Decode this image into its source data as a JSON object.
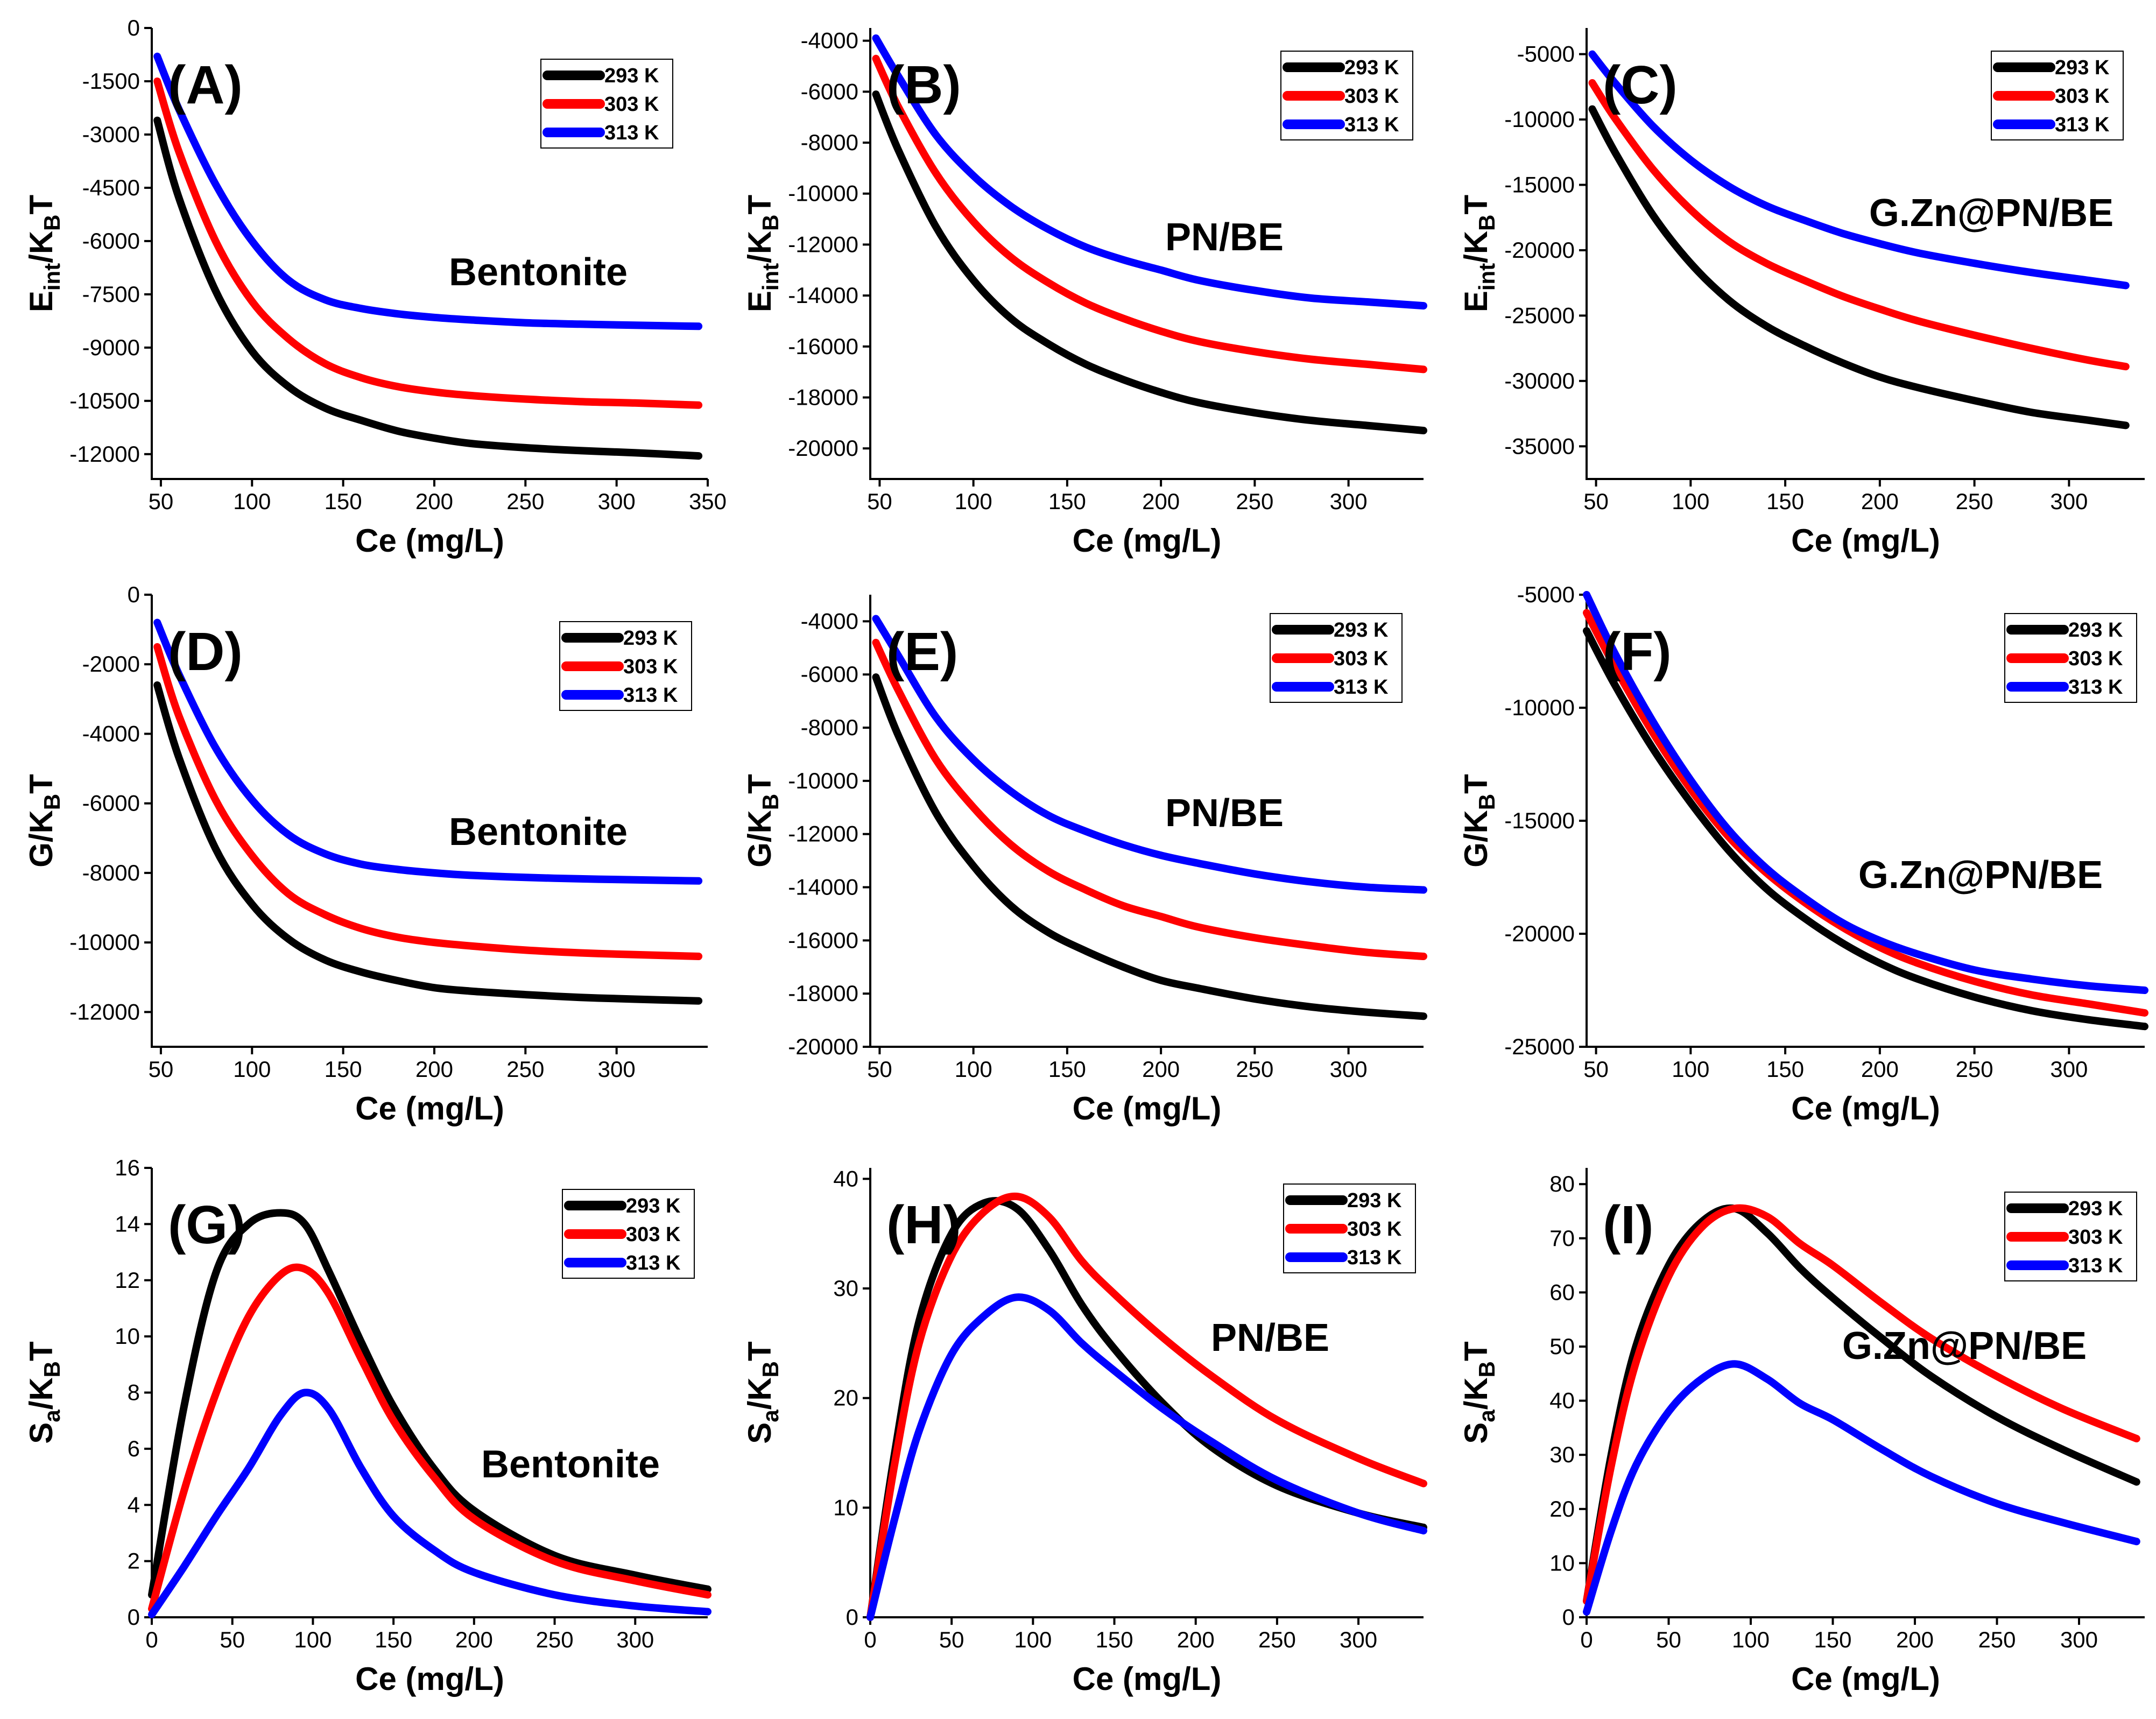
{
  "figure_title": "",
  "colors": {
    "293 K": "#000000",
    "303 K": "#ff0000",
    "313 K": "#0000ff"
  },
  "chart_data": [
    {
      "panel": "(A)",
      "type": "line",
      "annotation": "Bentonite",
      "xlabel": "Ce (mg/L)",
      "ylabel_main": "E",
      "ylabel_sub1": "int",
      "ylabel_mid": "/K",
      "ylabel_sub2": "B",
      "ylabel_tail": "T",
      "xlim": [
        45,
        350
      ],
      "ylim": [
        -12700,
        0
      ],
      "xticks": [
        50,
        100,
        150,
        200,
        250,
        300,
        350
      ],
      "yticks": [
        0,
        -1500,
        -3000,
        -4500,
        -6000,
        -7500,
        -9000,
        -10500,
        -12000
      ],
      "x": [
        48,
        60,
        80,
        100,
        120,
        140,
        160,
        180,
        200,
        220,
        250,
        280,
        310,
        345
      ],
      "series": [
        {
          "name": "293 K",
          "color": "#000000",
          "values": [
            -2600,
            -4800,
            -7400,
            -9100,
            -10100,
            -10700,
            -11050,
            -11350,
            -11550,
            -11700,
            -11820,
            -11900,
            -11960,
            -12050
          ]
        },
        {
          "name": "303 K",
          "color": "#ff0000",
          "values": [
            -1500,
            -3500,
            -6000,
            -7700,
            -8750,
            -9450,
            -9850,
            -10100,
            -10250,
            -10350,
            -10450,
            -10520,
            -10560,
            -10620
          ]
        },
        {
          "name": "313 K",
          "color": "#0000ff",
          "values": [
            -800,
            -2300,
            -4400,
            -6000,
            -7100,
            -7650,
            -7900,
            -8050,
            -8150,
            -8220,
            -8300,
            -8340,
            -8370,
            -8400
          ]
        }
      ]
    },
    {
      "panel": "(B)",
      "type": "line",
      "annotation": "PN/BE",
      "xlabel": "Ce (mg/L)",
      "ylabel_main": "E",
      "ylabel_sub1": "int",
      "ylabel_mid": "/K",
      "ylabel_sub2": "B",
      "ylabel_tail": "T",
      "xlim": [
        45,
        340
      ],
      "ylim": [
        -21200,
        -3500
      ],
      "xticks": [
        50,
        100,
        150,
        200,
        250,
        300
      ],
      "yticks": [
        -4000,
        -6000,
        -8000,
        -10000,
        -12000,
        -14000,
        -16000,
        -18000,
        -20000
      ],
      "x": [
        48,
        60,
        80,
        100,
        120,
        140,
        160,
        180,
        200,
        220,
        250,
        280,
        310,
        340
      ],
      "series": [
        {
          "name": "293 K",
          "color": "#000000",
          "values": [
            -6100,
            -8300,
            -11300,
            -13400,
            -14900,
            -15900,
            -16700,
            -17300,
            -17800,
            -18200,
            -18600,
            -18900,
            -19100,
            -19300
          ]
        },
        {
          "name": "303 K",
          "color": "#ff0000",
          "values": [
            -4700,
            -6600,
            -9200,
            -11100,
            -12500,
            -13500,
            -14300,
            -14900,
            -15400,
            -15800,
            -16200,
            -16500,
            -16700,
            -16900
          ]
        },
        {
          "name": "313 K",
          "color": "#0000ff",
          "values": [
            -3900,
            -5400,
            -7700,
            -9300,
            -10500,
            -11400,
            -12100,
            -12600,
            -13000,
            -13400,
            -13800,
            -14100,
            -14250,
            -14400
          ]
        }
      ]
    },
    {
      "panel": "(C)",
      "type": "line",
      "annotation": "G.Zn@PN/BE",
      "xlabel": "Ce (mg/L)",
      "ylabel_main": "E",
      "ylabel_sub1": "int",
      "ylabel_mid": "/K",
      "ylabel_sub2": "B",
      "ylabel_tail": "T",
      "xlim": [
        45,
        340
      ],
      "ylim": [
        -37500,
        -3000
      ],
      "xticks": [
        50,
        100,
        150,
        200,
        250,
        300
      ],
      "yticks": [
        -5000,
        -10000,
        -15000,
        -20000,
        -25000,
        -30000,
        -35000
      ],
      "x": [
        48,
        60,
        80,
        100,
        120,
        140,
        160,
        180,
        200,
        220,
        250,
        280,
        310,
        330
      ],
      "series": [
        {
          "name": "293 K",
          "color": "#000000",
          "values": [
            -9200,
            -12500,
            -17300,
            -21000,
            -23800,
            -25800,
            -27300,
            -28600,
            -29700,
            -30500,
            -31500,
            -32400,
            -33000,
            -33400
          ]
        },
        {
          "name": "303 K",
          "color": "#ff0000",
          "values": [
            -7200,
            -9900,
            -13800,
            -16900,
            -19300,
            -21000,
            -22300,
            -23500,
            -24500,
            -25400,
            -26500,
            -27500,
            -28400,
            -28900
          ]
        },
        {
          "name": "313 K",
          "color": "#0000ff",
          "values": [
            -5000,
            -7200,
            -10500,
            -13100,
            -15100,
            -16600,
            -17700,
            -18700,
            -19500,
            -20200,
            -21000,
            -21700,
            -22300,
            -22700
          ]
        }
      ]
    },
    {
      "panel": "(D)",
      "type": "line",
      "annotation": "Bentonite",
      "xlabel": "Ce (mg/L)",
      "ylabel_main": "G/K",
      "ylabel_sub1": "",
      "ylabel_mid": "",
      "ylabel_sub2": "B",
      "ylabel_tail": "T",
      "xlim": [
        45,
        350
      ],
      "ylim": [
        -13000,
        0
      ],
      "xticks": [
        50,
        100,
        150,
        200,
        250,
        300
      ],
      "yticks": [
        0,
        -2000,
        -4000,
        -6000,
        -8000,
        -10000,
        -12000
      ],
      "x": [
        48,
        60,
        80,
        100,
        120,
        140,
        160,
        180,
        200,
        220,
        250,
        280,
        310,
        345
      ],
      "series": [
        {
          "name": "293 K",
          "color": "#000000",
          "values": [
            -2600,
            -4700,
            -7300,
            -8900,
            -9900,
            -10500,
            -10850,
            -11100,
            -11300,
            -11400,
            -11500,
            -11580,
            -11630,
            -11680
          ]
        },
        {
          "name": "303 K",
          "color": "#ff0000",
          "values": [
            -1500,
            -3500,
            -5900,
            -7500,
            -8600,
            -9200,
            -9600,
            -9850,
            -10000,
            -10100,
            -10220,
            -10300,
            -10350,
            -10400
          ]
        },
        {
          "name": "313 K",
          "color": "#0000ff",
          "values": [
            -800,
            -2300,
            -4400,
            -5900,
            -6900,
            -7450,
            -7750,
            -7900,
            -8000,
            -8070,
            -8130,
            -8170,
            -8200,
            -8230
          ]
        }
      ]
    },
    {
      "panel": "(E)",
      "type": "line",
      "annotation": "PN/BE",
      "xlabel": "Ce (mg/L)",
      "ylabel_main": "G/K",
      "ylabel_sub1": "",
      "ylabel_mid": "",
      "ylabel_sub2": "B",
      "ylabel_tail": "T",
      "xlim": [
        45,
        340
      ],
      "ylim": [
        -20000,
        -3000
      ],
      "xticks": [
        50,
        100,
        150,
        200,
        250,
        300
      ],
      "yticks": [
        -4000,
        -6000,
        -8000,
        -10000,
        -12000,
        -14000,
        -16000,
        -18000,
        -20000
      ],
      "x": [
        48,
        60,
        80,
        100,
        120,
        140,
        160,
        180,
        200,
        220,
        250,
        280,
        310,
        340
      ],
      "series": [
        {
          "name": "293 K",
          "color": "#000000",
          "values": [
            -6100,
            -8300,
            -11200,
            -13200,
            -14700,
            -15700,
            -16400,
            -17000,
            -17500,
            -17800,
            -18200,
            -18500,
            -18700,
            -18850
          ]
        },
        {
          "name": "303 K",
          "color": "#ff0000",
          "values": [
            -4800,
            -6600,
            -9200,
            -11000,
            -12400,
            -13400,
            -14100,
            -14700,
            -15100,
            -15500,
            -15900,
            -16200,
            -16450,
            -16600
          ]
        },
        {
          "name": "313 K",
          "color": "#0000ff",
          "values": [
            -3900,
            -5300,
            -7600,
            -9200,
            -10400,
            -11300,
            -11900,
            -12400,
            -12800,
            -13100,
            -13500,
            -13800,
            -14000,
            -14100
          ]
        }
      ]
    },
    {
      "panel": "(F)",
      "type": "line",
      "annotation": "G.Zn@PN/BE",
      "xlabel": "Ce (mg/L)",
      "ylabel_main": "G/K",
      "ylabel_sub1": "",
      "ylabel_mid": "",
      "ylabel_sub2": "B",
      "ylabel_tail": "T",
      "xlim": [
        45,
        340
      ],
      "ylim": [
        -25000,
        -5000
      ],
      "xticks": [
        50,
        100,
        150,
        200,
        250,
        300
      ],
      "yticks": [
        -5000,
        -10000,
        -15000,
        -20000,
        -25000
      ],
      "x": [
        45,
        60,
        80,
        100,
        120,
        140,
        160,
        180,
        200,
        220,
        250,
        280,
        310,
        340
      ],
      "series": [
        {
          "name": "293 K",
          "color": "#000000",
          "values": [
            -6600,
            -9000,
            -11800,
            -14200,
            -16300,
            -18000,
            -19300,
            -20400,
            -21300,
            -22000,
            -22800,
            -23400,
            -23800,
            -24100
          ]
        },
        {
          "name": "303 K",
          "color": "#ff0000",
          "values": [
            -5800,
            -8200,
            -11100,
            -13600,
            -15700,
            -17300,
            -18600,
            -19700,
            -20600,
            -21300,
            -22100,
            -22700,
            -23100,
            -23500
          ]
        },
        {
          "name": "313 K",
          "color": "#0000ff",
          "values": [
            -5000,
            -7600,
            -10600,
            -13200,
            -15400,
            -17100,
            -18400,
            -19500,
            -20300,
            -20900,
            -21600,
            -22000,
            -22300,
            -22500
          ]
        }
      ]
    },
    {
      "panel": "(G)",
      "type": "line",
      "annotation": "Bentonite",
      "xlabel": "Ce (mg/L)",
      "ylabel_main": "S",
      "ylabel_sub1": "a",
      "ylabel_mid": "/K",
      "ylabel_sub2": "B",
      "ylabel_tail": "T",
      "xlim": [
        0,
        345
      ],
      "ylim": [
        0,
        16
      ],
      "xticks": [
        0,
        50,
        100,
        150,
        200,
        250,
        300
      ],
      "yticks": [
        0,
        2,
        4,
        6,
        8,
        10,
        12,
        14,
        16
      ],
      "x": [
        0,
        20,
        40,
        60,
        80,
        95,
        110,
        130,
        150,
        175,
        200,
        250,
        300,
        345
      ],
      "series": [
        {
          "name": "293 K",
          "color": "#000000",
          "values": [
            0.8,
            7.5,
            12.3,
            14.0,
            14.4,
            14.0,
            12.3,
            9.8,
            7.5,
            5.3,
            3.8,
            2.2,
            1.5,
            1.0
          ]
        },
        {
          "name": "303 K",
          "color": "#ff0000",
          "values": [
            0.3,
            4.5,
            8.0,
            10.7,
            12.2,
            12.4,
            11.5,
            9.2,
            7.0,
            5.0,
            3.5,
            2.0,
            1.3,
            0.8
          ]
        },
        {
          "name": "313 K",
          "color": "#0000ff",
          "values": [
            0.1,
            1.8,
            3.6,
            5.3,
            7.2,
            8.0,
            7.4,
            5.3,
            3.6,
            2.4,
            1.6,
            0.8,
            0.4,
            0.2
          ]
        }
      ]
    },
    {
      "panel": "(H)",
      "type": "line",
      "annotation": "PN/BE",
      "xlabel": "Ce (mg/L)",
      "ylabel_main": "S",
      "ylabel_sub1": "a",
      "ylabel_mid": "/K",
      "ylabel_sub2": "B",
      "ylabel_tail": "T",
      "xlim": [
        0,
        340
      ],
      "ylim": [
        0,
        41
      ],
      "xticks": [
        0,
        50,
        100,
        150,
        200,
        250,
        300
      ],
      "yticks": [
        0,
        10,
        20,
        30,
        40
      ],
      "x": [
        0,
        15,
        30,
        50,
        70,
        90,
        110,
        130,
        150,
        180,
        210,
        250,
        300,
        340
      ],
      "series": [
        {
          "name": "293 K",
          "color": "#000000",
          "values": [
            0,
            15,
            27,
            35,
            37.8,
            37.3,
            33.5,
            28.5,
            24.5,
            19.5,
            15.5,
            12.0,
            9.5,
            8.2
          ]
        },
        {
          "name": "303 K",
          "color": "#ff0000",
          "values": [
            0,
            14,
            25,
            33,
            37,
            38.4,
            36.5,
            32.5,
            29.5,
            25.5,
            22,
            18,
            14.5,
            12.2
          ]
        },
        {
          "name": "313 K",
          "color": "#0000ff",
          "values": [
            0,
            9,
            17,
            24,
            27.5,
            29.2,
            28,
            25,
            22.5,
            19,
            16,
            12.5,
            9.5,
            7.9
          ]
        }
      ]
    },
    {
      "panel": "(I)",
      "type": "line",
      "annotation": "G.Zn@PN/BE",
      "xlabel": "Ce (mg/L)",
      "ylabel_main": "S",
      "ylabel_sub1": "a",
      "ylabel_mid": "/K",
      "ylabel_sub2": "B",
      "ylabel_tail": "T",
      "xlim": [
        0,
        340
      ],
      "ylim": [
        0,
        83
      ],
      "xticks": [
        0,
        50,
        100,
        150,
        200,
        250,
        300
      ],
      "yticks": [
        0,
        10,
        20,
        30,
        40,
        50,
        60,
        70,
        80
      ],
      "x": [
        0,
        15,
        30,
        50,
        70,
        90,
        110,
        130,
        150,
        180,
        210,
        250,
        290,
        335
      ],
      "series": [
        {
          "name": "293 K",
          "color": "#000000",
          "values": [
            3,
            30,
            50,
            65,
            73,
            75.5,
            71,
            64.5,
            59,
            51.5,
            44.5,
            37,
            31,
            25
          ]
        },
        {
          "name": "303 K",
          "color": "#ff0000",
          "values": [
            3,
            28,
            47,
            63,
            72,
            75.5,
            74,
            69,
            65,
            58,
            51.5,
            44.5,
            38.5,
            33
          ]
        },
        {
          "name": "313 K",
          "color": "#0000ff",
          "values": [
            1,
            16,
            28,
            38,
            44,
            46.8,
            44,
            39.5,
            36.5,
            31,
            26,
            21,
            17.5,
            14
          ]
        }
      ]
    }
  ]
}
